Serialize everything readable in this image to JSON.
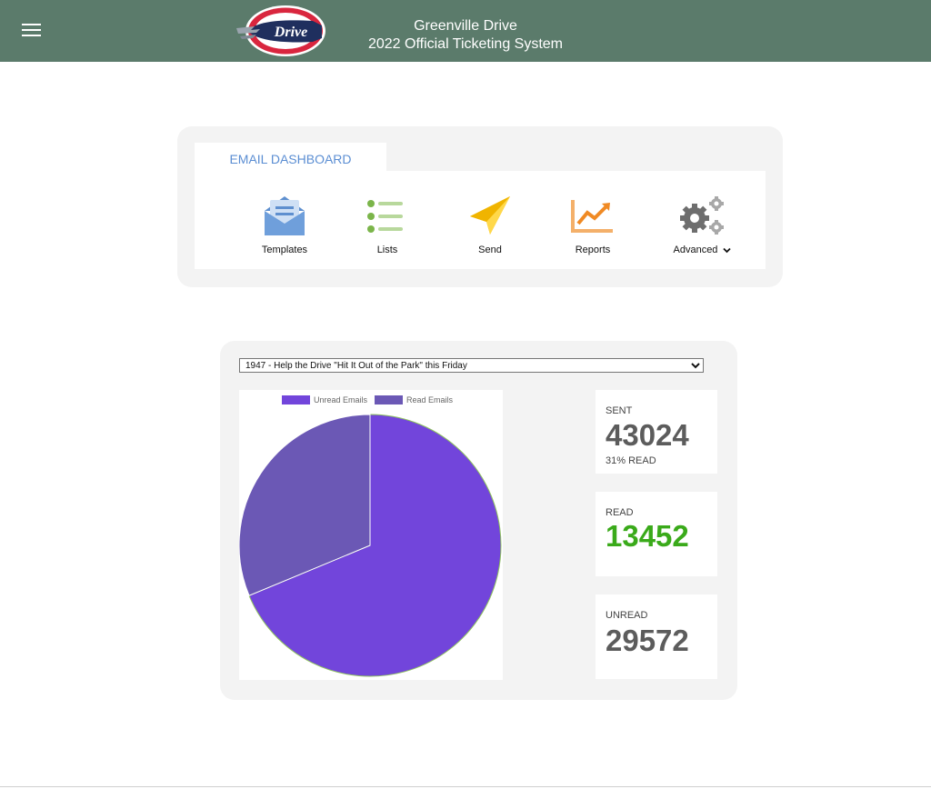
{
  "header": {
    "title_line1": "Greenville Drive",
    "title_line2": "2022 Official Ticketing System",
    "logo_text": "Drive",
    "background_color": "#5b7b6b"
  },
  "dashboard": {
    "tab_label": "EMAIL DASHBOARD",
    "items": [
      {
        "label": "Templates",
        "icon": "envelope-icon"
      },
      {
        "label": "Lists",
        "icon": "list-icon"
      },
      {
        "label": "Send",
        "icon": "paper-plane-icon"
      },
      {
        "label": "Reports",
        "icon": "trend-chart-icon"
      },
      {
        "label": "Advanced",
        "icon": "gears-icon"
      }
    ]
  },
  "email_select": {
    "selected": "1947 - Help the Drive \"Hit It Out of the Park\" this Friday"
  },
  "stats": {
    "sent": {
      "label": "SENT",
      "value": "43024",
      "sub": "31% READ"
    },
    "read": {
      "label": "READ",
      "value": "13452",
      "color": "#3aaa1a"
    },
    "unread": {
      "label": "UNREAD",
      "value": "29572"
    }
  },
  "chart_data": {
    "type": "pie",
    "categories": [
      "Unread Emails",
      "Read Emails"
    ],
    "values": [
      29572,
      13452
    ],
    "colors": [
      "#7245db",
      "#6b58b5"
    ],
    "legend": "top"
  }
}
